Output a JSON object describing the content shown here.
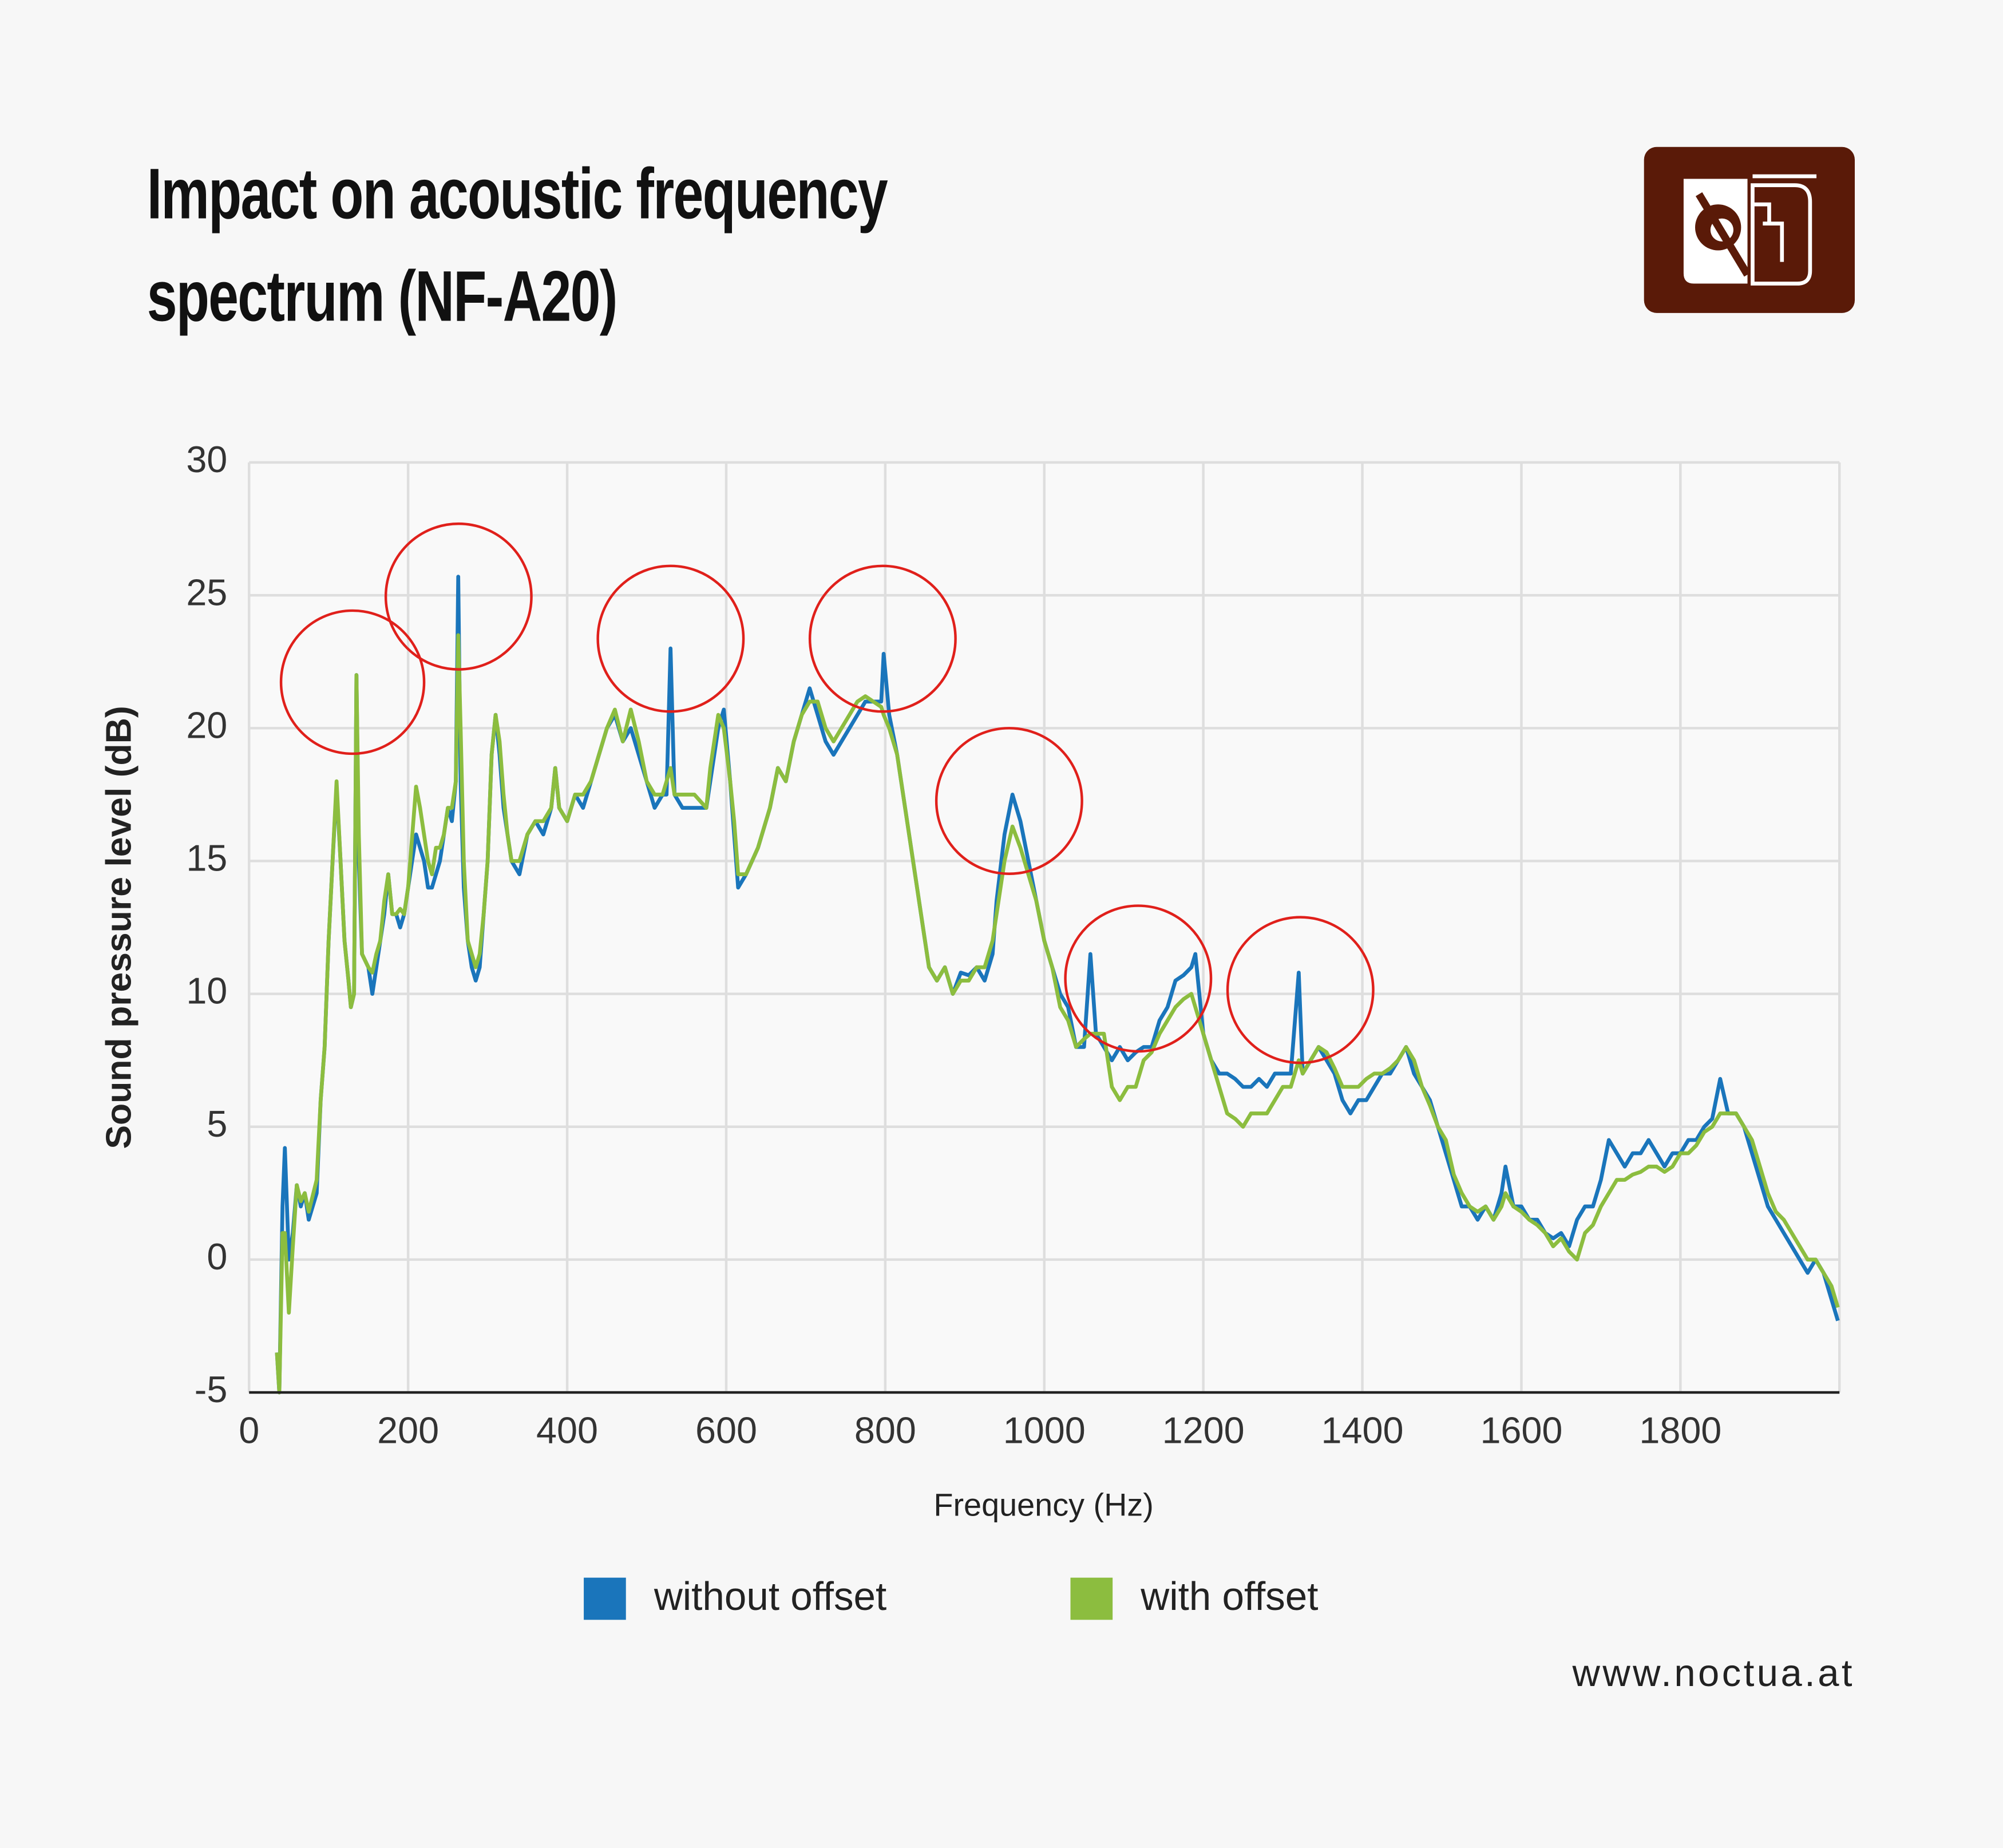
{
  "chart_data": {
    "type": "line",
    "title": "Impact on acoustic frequency spectrum (NF-A20)",
    "x_label": "Frequency (Hz)",
    "y_label": "Sound pressure level (dB)",
    "source": "www.noctua.at",
    "xlim": [
      0,
      2000
    ],
    "xticks": [
      0,
      200,
      400,
      600,
      800,
      1000,
      1200,
      1400,
      1600,
      1800
    ],
    "ylim": [
      -5,
      30
    ],
    "yticks": [
      -5,
      0,
      5,
      10,
      15,
      20,
      25,
      30
    ],
    "grid": true,
    "legend": "bottom",
    "x": [
      35,
      38,
      42,
      45,
      50,
      55,
      60,
      65,
      70,
      75,
      85,
      90,
      95,
      100,
      105,
      110,
      115,
      120,
      125,
      128,
      132,
      135,
      138,
      142,
      150,
      155,
      160,
      165,
      170,
      175,
      180,
      185,
      190,
      195,
      200,
      210,
      215,
      220,
      225,
      230,
      235,
      240,
      245,
      250,
      255,
      260,
      263,
      266,
      270,
      275,
      280,
      285,
      290,
      295,
      300,
      305,
      310,
      315,
      320,
      325,
      330,
      340,
      350,
      360,
      370,
      380,
      385,
      390,
      400,
      410,
      420,
      430,
      440,
      450,
      460,
      470,
      480,
      490,
      500,
      510,
      520,
      525,
      530,
      535,
      545,
      560,
      575,
      580,
      590,
      597,
      605,
      610,
      615,
      625,
      640,
      655,
      665,
      675,
      685,
      695,
      705,
      715,
      725,
      735,
      745,
      755,
      765,
      775,
      785,
      795,
      798,
      805,
      815,
      825,
      835,
      845,
      855,
      865,
      875,
      885,
      895,
      905,
      915,
      925,
      935,
      940,
      950,
      960,
      970,
      980,
      990,
      1000,
      1010,
      1020,
      1030,
      1040,
      1050,
      1058,
      1065,
      1075,
      1085,
      1095,
      1105,
      1115,
      1125,
      1135,
      1145,
      1155,
      1165,
      1175,
      1185,
      1190,
      1200,
      1210,
      1220,
      1230,
      1240,
      1250,
      1260,
      1270,
      1280,
      1290,
      1300,
      1310,
      1320,
      1325,
      1335,
      1345,
      1355,
      1365,
      1375,
      1385,
      1395,
      1405,
      1415,
      1425,
      1435,
      1445,
      1455,
      1465,
      1475,
      1485,
      1495,
      1505,
      1515,
      1525,
      1535,
      1545,
      1555,
      1565,
      1575,
      1580,
      1590,
      1600,
      1610,
      1620,
      1630,
      1640,
      1650,
      1660,
      1670,
      1680,
      1690,
      1700,
      1710,
      1720,
      1730,
      1740,
      1750,
      1760,
      1770,
      1780,
      1790,
      1800,
      1810,
      1820,
      1830,
      1840,
      1850,
      1860,
      1870,
      1880,
      1890,
      1900,
      1910,
      1920,
      1930,
      1940,
      1950,
      1960,
      1970,
      1980,
      1990,
      1998
    ],
    "series": [
      {
        "name": "without offset",
        "color": "#1a75bb",
        "values": [
          -3.5,
          -5,
          2,
          4.2,
          0,
          1,
          2.8,
          2,
          2.5,
          1.5,
          2.5,
          6,
          8,
          12,
          15,
          17.8,
          15,
          12,
          10.5,
          9.5,
          10,
          22,
          15,
          11.5,
          11,
          10,
          11,
          12,
          13,
          14.5,
          13,
          13,
          12.5,
          13,
          14,
          16,
          15.5,
          15,
          14,
          14,
          14.5,
          15,
          16,
          17,
          16.5,
          18,
          25.7,
          18,
          14,
          12,
          11,
          10.5,
          11,
          13,
          15,
          19,
          20.5,
          19,
          17,
          16,
          15,
          14.5,
          16,
          16.5,
          16,
          17,
          18.5,
          17,
          16.5,
          17.5,
          17,
          18,
          19,
          20,
          20.5,
          19.5,
          20,
          19,
          18,
          17,
          17.5,
          17.5,
          23,
          17.5,
          17,
          17,
          17,
          18,
          20,
          20.7,
          18,
          16,
          14,
          14.5,
          15.5,
          17,
          18.5,
          18,
          19.5,
          20.5,
          21.5,
          20.5,
          19.5,
          19,
          19.5,
          20,
          20.5,
          21,
          21,
          21,
          22.8,
          20.5,
          19,
          17,
          15,
          13,
          11,
          10.5,
          11,
          10,
          10.8,
          10.7,
          11,
          10.5,
          11.5,
          13.5,
          16,
          17.5,
          16.5,
          15,
          13.5,
          12,
          11,
          10,
          9.5,
          8,
          8,
          11.5,
          8.5,
          8,
          7.5,
          8,
          7.5,
          7.8,
          8,
          8,
          9,
          9.5,
          10.5,
          10.7,
          11,
          11.5,
          8.5,
          7.5,
          7,
          7,
          6.8,
          6.5,
          6.5,
          6.8,
          6.5,
          7,
          7,
          7,
          10.8,
          7,
          7.5,
          8,
          7.5,
          7,
          6,
          5.5,
          6,
          6,
          6.5,
          7,
          7,
          7.5,
          8,
          7,
          6.5,
          6,
          5,
          4,
          3,
          2,
          2,
          1.5,
          2,
          1.5,
          2.5,
          3.5,
          2,
          2,
          1.5,
          1.5,
          1,
          0.8,
          1,
          0.5,
          1.5,
          2,
          2,
          3,
          4.5,
          4,
          3.5,
          4,
          4,
          4.5,
          4,
          3.5,
          4,
          4,
          4.5,
          4.5,
          5,
          5.3,
          6.8,
          5.5,
          5.5,
          5,
          4,
          3,
          2,
          1.5,
          1,
          0.5,
          0,
          -0.5,
          0,
          -0.5,
          -1.5,
          -2.3
        ]
      },
      {
        "name": "with offset",
        "color": "#8cbd3f",
        "values": [
          -3.5,
          -5,
          1,
          1,
          -2,
          0.5,
          2.8,
          2.2,
          2.5,
          1.8,
          3,
          6,
          8,
          12,
          15,
          18,
          15,
          12,
          10.5,
          9.5,
          10,
          22,
          16,
          11.5,
          11,
          10.8,
          11.5,
          12,
          13.5,
          14.5,
          13,
          13,
          13.2,
          13,
          14,
          17.8,
          17,
          16,
          15,
          14.5,
          15.5,
          15.5,
          16,
          17,
          17,
          18,
          23.5,
          20,
          15,
          12,
          11.5,
          11,
          11.5,
          13,
          15,
          19,
          20.5,
          19.5,
          17.5,
          16,
          15,
          15,
          16,
          16.5,
          16.5,
          17,
          18.5,
          17,
          16.5,
          17.5,
          17.5,
          18,
          19,
          20,
          20.7,
          19.5,
          20.7,
          19.5,
          18,
          17.5,
          17.5,
          18,
          18.5,
          17.5,
          17.5,
          17.5,
          17,
          18.5,
          20.5,
          20,
          18,
          16.5,
          14.5,
          14.5,
          15.5,
          17,
          18.5,
          18,
          19.5,
          20.5,
          21,
          21,
          20,
          19.5,
          20,
          20.5,
          21,
          21.2,
          21,
          20.8,
          20.5,
          20,
          19,
          17,
          15,
          13,
          11,
          10.5,
          11,
          10,
          10.5,
          10.5,
          11,
          11,
          12,
          13,
          15,
          16.3,
          15.5,
          14.5,
          13.5,
          12,
          11,
          9.5,
          9,
          8,
          8.3,
          8.5,
          8.5,
          8.5,
          6.5,
          6,
          6.5,
          6.5,
          7.5,
          7.8,
          8.5,
          9,
          9.5,
          9.8,
          10,
          9.5,
          8.5,
          7.5,
          6.5,
          5.5,
          5.3,
          5,
          5.5,
          5.5,
          5.5,
          6,
          6.5,
          6.5,
          7.5,
          7,
          7.5,
          8,
          7.8,
          7.2,
          6.5,
          6.5,
          6.5,
          6.8,
          7,
          7,
          7.2,
          7.5,
          8,
          7.5,
          6.5,
          5.8,
          5,
          4.5,
          3.2,
          2.5,
          2,
          1.8,
          2,
          1.5,
          2,
          2.5,
          2,
          1.8,
          1.5,
          1.3,
          1,
          0.5,
          0.8,
          0.3,
          0,
          1,
          1.3,
          2,
          2.5,
          3,
          3,
          3.2,
          3.3,
          3.5,
          3.5,
          3.3,
          3.5,
          4,
          4,
          4.3,
          4.8,
          5,
          5.5,
          5.5,
          5.5,
          5,
          4.5,
          3.5,
          2.5,
          1.8,
          1.5,
          1,
          0.5,
          0,
          0,
          -0.5,
          -1,
          -1.8
        ]
      }
    ]
  }
}
